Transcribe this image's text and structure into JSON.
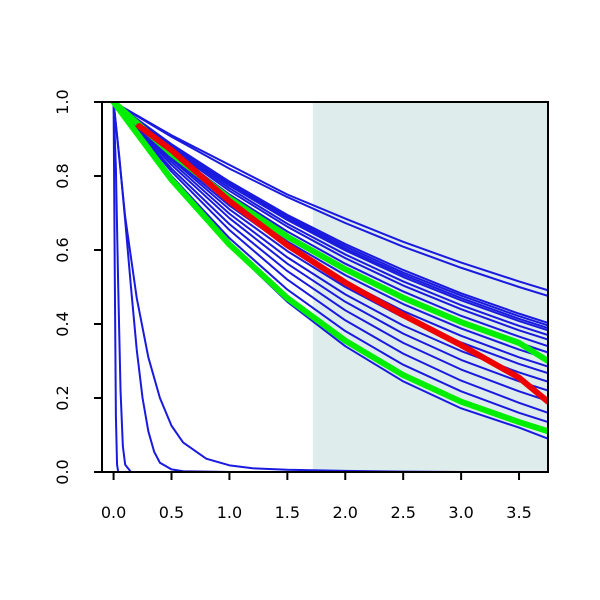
{
  "chart_data": {
    "type": "line",
    "title": "",
    "xlabel": "",
    "ylabel": "",
    "xlim": [
      -0.1,
      3.75
    ],
    "ylim": [
      0,
      1
    ],
    "x_ticks": [
      0.0,
      0.5,
      1.0,
      1.5,
      2.0,
      2.5,
      3.0,
      3.5
    ],
    "x_tick_labels": [
      "0.0",
      "0.5",
      "1.0",
      "1.5",
      "2.0",
      "2.5",
      "3.0",
      "3.5"
    ],
    "y_ticks": [
      0.0,
      0.2,
      0.4,
      0.6,
      0.8,
      1.0
    ],
    "y_tick_labels": [
      "0.0",
      "0.2",
      "0.4",
      "0.6",
      "0.8",
      "1.0"
    ],
    "shaded_region": {
      "x_from": 1.72,
      "x_to": 3.75,
      "color": "#dfecec"
    },
    "grid": false,
    "legend": "none",
    "colors": {
      "blue": "#1a1adf",
      "green": "#00ee00",
      "red": "#ee0000"
    },
    "series": [
      {
        "color": "blue",
        "emphasis": false,
        "x": [
          0,
          0.5,
          1.0,
          1.5,
          2.0,
          2.5,
          3.0,
          3.5,
          3.75
        ],
        "y": [
          1.0,
          0.91,
          0.83,
          0.75,
          0.685,
          0.622,
          0.566,
          0.515,
          0.491
        ]
      },
      {
        "color": "blue",
        "emphasis": false,
        "x": [
          0,
          0.5,
          1.0,
          1.5,
          2.0,
          2.5,
          3.0,
          3.5,
          3.75
        ],
        "y": [
          1.0,
          0.906,
          0.82,
          0.743,
          0.673,
          0.609,
          0.552,
          0.5,
          0.476
        ]
      },
      {
        "color": "blue",
        "emphasis": false,
        "x": [
          0,
          0.5,
          1.0,
          1.5,
          2.0,
          2.5,
          3.0,
          3.5,
          3.75
        ],
        "y": [
          1.0,
          0.886,
          0.785,
          0.695,
          0.616,
          0.546,
          0.483,
          0.428,
          0.403
        ]
      },
      {
        "color": "blue",
        "emphasis": false,
        "x": [
          0,
          0.5,
          1.0,
          1.5,
          2.0,
          2.5,
          3.0,
          3.5,
          3.75
        ],
        "y": [
          1.0,
          0.884,
          0.781,
          0.69,
          0.61,
          0.539,
          0.477,
          0.421,
          0.396
        ]
      },
      {
        "color": "blue",
        "emphasis": false,
        "x": [
          0,
          0.5,
          1.0,
          1.5,
          2.0,
          2.5,
          3.0,
          3.5,
          3.75
        ],
        "y": [
          1.0,
          0.882,
          0.777,
          0.685,
          0.604,
          0.533,
          0.47,
          0.414,
          0.389
        ]
      },
      {
        "color": "blue",
        "emphasis": false,
        "x": [
          0,
          0.5,
          1.0,
          1.5,
          2.0,
          2.5,
          3.0,
          3.5,
          3.75
        ],
        "y": [
          1.0,
          0.88,
          0.774,
          0.681,
          0.599,
          0.527,
          0.464,
          0.408,
          0.383
        ]
      },
      {
        "color": "blue",
        "emphasis": false,
        "x": [
          0,
          0.5,
          1.0,
          1.5,
          2.0,
          2.5,
          3.0,
          3.5,
          3.75
        ],
        "y": [
          1.0,
          0.876,
          0.767,
          0.671,
          0.588,
          0.515,
          0.451,
          0.395,
          0.37
        ]
      },
      {
        "color": "blue",
        "emphasis": false,
        "x": [
          0,
          0.5,
          1.0,
          1.5,
          2.0,
          2.5,
          3.0,
          3.5,
          3.75
        ],
        "y": [
          1.0,
          0.872,
          0.76,
          0.663,
          0.578,
          0.504,
          0.44,
          0.383,
          0.358
        ]
      },
      {
        "color": "blue",
        "emphasis": false,
        "x": [
          0,
          0.5,
          1.0,
          1.5,
          2.0,
          2.5,
          3.0,
          3.5,
          3.75
        ],
        "y": [
          1.0,
          0.866,
          0.75,
          0.65,
          0.563,
          0.488,
          0.422,
          0.366,
          0.34
        ]
      },
      {
        "color": "blue",
        "emphasis": false,
        "x": [
          0,
          0.5,
          1.0,
          1.5,
          2.0,
          2.5,
          3.0,
          3.5,
          3.75
        ],
        "y": [
          1.0,
          0.86,
          0.74,
          0.636,
          0.548,
          0.471,
          0.405,
          0.349,
          0.323
        ]
      },
      {
        "color": "blue",
        "emphasis": false,
        "x": [
          0,
          0.5,
          1.0,
          1.5,
          2.0,
          2.5,
          3.0,
          3.5,
          3.75
        ],
        "y": [
          1.0,
          0.854,
          0.729,
          0.623,
          0.532,
          0.454,
          0.388,
          0.331,
          0.306
        ]
      },
      {
        "color": "blue",
        "emphasis": false,
        "x": [
          0,
          0.5,
          1.0,
          1.5,
          2.0,
          2.5,
          3.0,
          3.5,
          3.75
        ],
        "y": [
          1.0,
          0.85,
          0.72,
          0.61,
          0.515,
          0.435,
          0.368,
          0.31,
          0.285
        ]
      },
      {
        "color": "blue",
        "emphasis": false,
        "x": [
          0,
          0.5,
          1.0,
          1.5,
          2.0,
          2.5,
          3.0,
          3.5,
          3.75
        ],
        "y": [
          1.0,
          0.845,
          0.71,
          0.597,
          0.5,
          0.418,
          0.35,
          0.292,
          0.267
        ]
      },
      {
        "color": "blue",
        "emphasis": false,
        "x": [
          0,
          0.5,
          1.0,
          1.5,
          2.0,
          2.5,
          3.0,
          3.5,
          3.75
        ],
        "y": [
          1.0,
          0.838,
          0.698,
          0.58,
          0.48,
          0.396,
          0.327,
          0.269,
          0.244
        ]
      },
      {
        "color": "blue",
        "emphasis": false,
        "x": [
          0,
          0.5,
          1.0,
          1.5,
          2.0,
          2.5,
          3.0,
          3.5,
          3.75
        ],
        "y": [
          1.0,
          0.83,
          0.686,
          0.563,
          0.46,
          0.374,
          0.303,
          0.245,
          0.22
        ]
      },
      {
        "color": "blue",
        "emphasis": false,
        "x": [
          0,
          0.5,
          1.0,
          1.5,
          2.0,
          2.5,
          3.0,
          3.5,
          3.75
        ],
        "y": [
          1.0,
          0.82,
          0.67,
          0.543,
          0.437,
          0.349,
          0.277,
          0.218,
          0.192
        ]
      },
      {
        "color": "blue",
        "emphasis": false,
        "x": [
          0,
          0.5,
          1.0,
          1.5,
          2.0,
          2.5,
          3.0,
          3.5,
          3.75
        ],
        "y": [
          1.0,
          0.812,
          0.654,
          0.52,
          0.41,
          0.32,
          0.247,
          0.187,
          0.16
        ]
      },
      {
        "color": "blue",
        "emphasis": false,
        "x": [
          0,
          0.5,
          1.0,
          1.5,
          2.0,
          2.5,
          3.0,
          3.5,
          3.75
        ],
        "y": [
          1.0,
          0.8,
          0.632,
          0.493,
          0.381,
          0.29,
          0.218,
          0.16,
          0.135
        ]
      },
      {
        "color": "blue",
        "emphasis": false,
        "x": [
          0,
          0.5,
          1.0,
          1.5,
          2.0,
          2.5,
          3.0,
          3.5,
          3.75
        ],
        "y": [
          1.0,
          0.79,
          0.61,
          0.46,
          0.34,
          0.245,
          0.172,
          0.12,
          0.09
        ]
      },
      {
        "color": "blue",
        "emphasis": false,
        "x": [
          0,
          0.1,
          0.2,
          0.3,
          0.4,
          0.5,
          0.6,
          0.8,
          1.0,
          1.2,
          1.5,
          2.0,
          2.5,
          3.0,
          3.75
        ],
        "y": [
          1.0,
          0.69,
          0.47,
          0.31,
          0.2,
          0.125,
          0.08,
          0.036,
          0.018,
          0.01,
          0.006,
          0.003,
          0.001,
          0.0,
          0.0
        ]
      },
      {
        "color": "blue",
        "emphasis": false,
        "x": [
          0,
          0.05,
          0.1,
          0.15,
          0.2,
          0.25,
          0.3,
          0.35,
          0.4,
          0.5,
          0.6,
          1.0,
          3.75
        ],
        "y": [
          1.0,
          0.85,
          0.68,
          0.5,
          0.33,
          0.2,
          0.11,
          0.055,
          0.025,
          0.007,
          0.002,
          0.0,
          0.0
        ]
      },
      {
        "color": "blue",
        "emphasis": false,
        "x": [
          0,
          0.02,
          0.04,
          0.06,
          0.08,
          0.1,
          0.15,
          3.75
        ],
        "y": [
          1.0,
          0.82,
          0.5,
          0.22,
          0.07,
          0.02,
          0.0,
          0.0
        ]
      },
      {
        "color": "blue",
        "emphasis": false,
        "x": [
          0,
          0.01,
          0.02,
          0.03,
          0.04,
          3.75
        ],
        "y": [
          1.0,
          0.55,
          0.15,
          0.02,
          0.0,
          0.0
        ]
      },
      {
        "color": "green",
        "emphasis": true,
        "x": [
          0,
          0.5,
          1.0,
          1.5,
          2.0,
          2.5,
          3.0,
          3.5,
          3.75
        ],
        "y": [
          1.0,
          0.86,
          0.74,
          0.636,
          0.548,
          0.471,
          0.405,
          0.349,
          0.3
        ]
      },
      {
        "color": "green",
        "emphasis": true,
        "x": [
          0,
          0.5,
          1.0,
          1.5,
          2.0,
          2.5,
          3.0,
          3.5,
          3.75
        ],
        "y": [
          1.0,
          0.79,
          0.615,
          0.47,
          0.355,
          0.262,
          0.19,
          0.135,
          0.11
        ]
      },
      {
        "color": "red",
        "emphasis": true,
        "x": [
          0.22,
          0.5,
          1.0,
          1.5,
          2.0,
          2.5,
          3.0,
          3.5,
          3.75
        ],
        "y": [
          0.935,
          0.87,
          0.732,
          0.613,
          0.512,
          0.424,
          0.343,
          0.255,
          0.19
        ]
      }
    ]
  }
}
